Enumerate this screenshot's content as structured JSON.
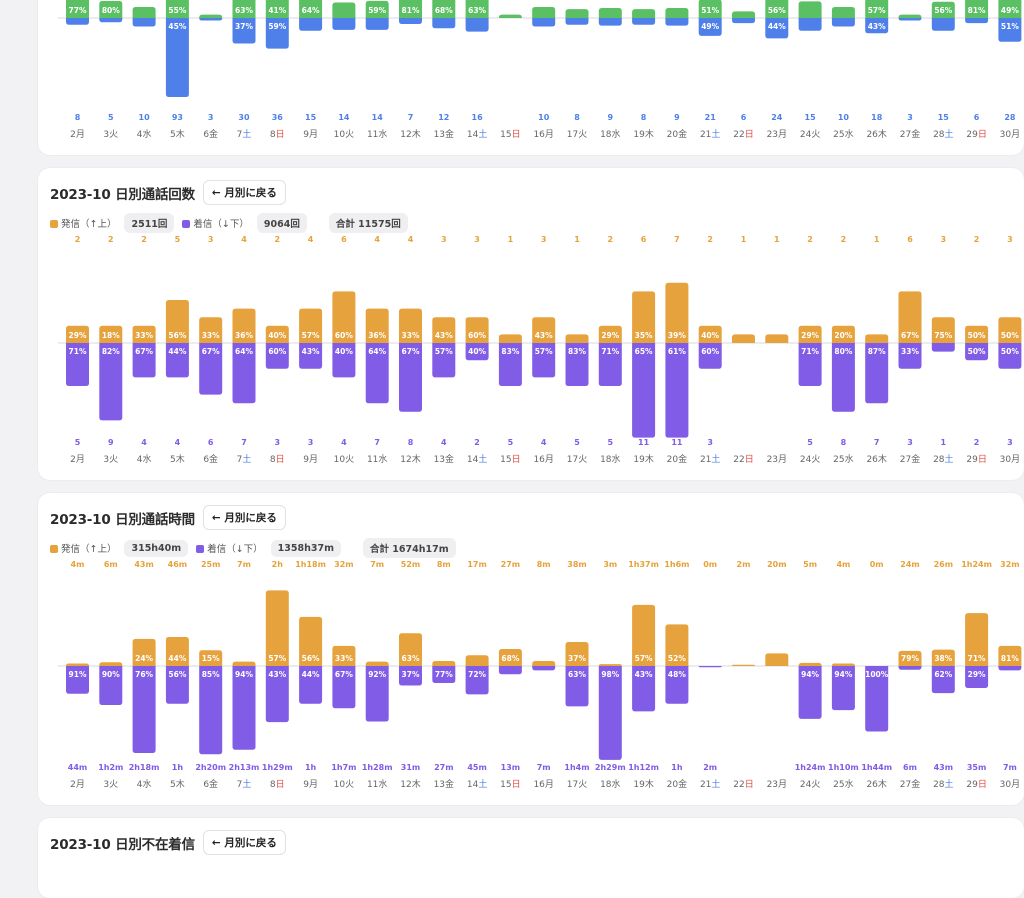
{
  "colors": {
    "green": "#5bbf63",
    "blue": "#4f80ea",
    "orange": "#e6a23c",
    "purple": "#815ce6",
    "sat": "#4a7ee8",
    "sun": "#e04a3f",
    "axis": "#d8d8dc",
    "daytext": "#666666"
  },
  "days": [
    "2",
    "3",
    "4",
    "5",
    "6",
    "7",
    "8",
    "9",
    "10",
    "11",
    "12",
    "13",
    "14",
    "15",
    "16",
    "17",
    "18",
    "19",
    "20",
    "21",
    "22",
    "23",
    "24",
    "25",
    "26",
    "27",
    "28",
    "29",
    "30"
  ],
  "weekdays": [
    "月",
    "火",
    "水",
    "木",
    "金",
    "土",
    "日",
    "月",
    "火",
    "水",
    "木",
    "金",
    "土",
    "日",
    "月",
    "火",
    "水",
    "木",
    "金",
    "土",
    "日",
    "月",
    "火",
    "水",
    "木",
    "金",
    "土",
    "日",
    "月"
  ],
  "sections": [
    {
      "id": "top",
      "title": "",
      "back_label": "",
      "legend": null
    },
    {
      "id": "count",
      "title": "2023-10 日別通話回数",
      "back_label": "← 月別に戻る",
      "legend": {
        "up_label": "発信（↑上）",
        "up_total": "2511回",
        "down_label": "着信（↓下）",
        "down_total": "9064回",
        "total": "合計 11575回"
      }
    },
    {
      "id": "duration",
      "title": "2023-10 日別通話時間",
      "back_label": "← 月別に戻る",
      "legend": {
        "up_label": "発信（↑上）",
        "up_total": "315h40m",
        "down_label": "着信（↓下）",
        "down_total": "1358h37m",
        "total": "合計 1674h17m"
      }
    },
    {
      "id": "missed",
      "title": "2023-10 日別不在着信",
      "back_label": "← 月別に戻る",
      "legend": null
    }
  ],
  "chart_data": [
    {
      "type": "bar",
      "title": "",
      "subtype": "diverging-stacked",
      "categories": [
        "2月",
        "3火",
        "4水",
        "5木",
        "6金",
        "7土",
        "8日",
        "9月",
        "10火",
        "11水",
        "12木",
        "13金",
        "14土",
        "15日",
        "16月",
        "17火",
        "18水",
        "19木",
        "20金",
        "21土",
        "22日",
        "23月",
        "24火",
        "25水",
        "26木",
        "27金",
        "28土",
        "29日",
        "30月"
      ],
      "series": [
        {
          "name": "up (green)",
          "direction": "up",
          "pct_labels": [
            "77%",
            "80%",
            "",
            "55%",
            "",
            "63%",
            "41%",
            "64%",
            "",
            "59%",
            "81%",
            "68%",
            "63%",
            "",
            "",
            "",
            "",
            "",
            "",
            "51%",
            "",
            "56%",
            "",
            "",
            "57%",
            "",
            "56%",
            "81%",
            "49%"
          ]
        },
        {
          "name": "down (blue)",
          "direction": "down",
          "values": [
            8,
            5,
            10,
            93,
            3,
            30,
            36,
            15,
            14,
            14,
            7,
            12,
            16,
            null,
            10,
            8,
            9,
            8,
            9,
            21,
            6,
            24,
            15,
            10,
            18,
            3,
            15,
            6,
            28
          ],
          "pct_labels": [
            "",
            "",
            "",
            "45%",
            "",
            "37%",
            "59%",
            "",
            "",
            "",
            "",
            "",
            "",
            "",
            "",
            "",
            "",
            "",
            "",
            "49%",
            "",
            "44%",
            "",
            "",
            "43%",
            "",
            "",
            "",
            "51%"
          ]
        }
      ],
      "notes": "Chart top is cropped; up-bar values not visible."
    },
    {
      "type": "bar",
      "subtype": "diverging-stacked",
      "title": "2023-10 日別通話回数",
      "categories": [
        "2月",
        "3火",
        "4水",
        "5木",
        "6金",
        "7土",
        "8日",
        "9月",
        "10火",
        "11水",
        "12木",
        "13金",
        "14土",
        "15日",
        "16月",
        "17火",
        "18水",
        "19木",
        "20金",
        "21土",
        "22日",
        "23月",
        "24火",
        "25水",
        "26木",
        "27金",
        "28土",
        "29日",
        "30月"
      ],
      "series": [
        {
          "name": "発信（↑上）",
          "direction": "up",
          "values": [
            2,
            2,
            2,
            5,
            3,
            4,
            2,
            4,
            6,
            4,
            4,
            3,
            3,
            1,
            3,
            1,
            2,
            6,
            7,
            2,
            1,
            1,
            2,
            2,
            1,
            6,
            3,
            2,
            3
          ],
          "pct_labels": [
            "29%",
            "18%",
            "33%",
            "56%",
            "33%",
            "36%",
            "40%",
            "57%",
            "60%",
            "36%",
            "33%",
            "43%",
            "60%",
            "",
            "43%",
            "",
            "29%",
            "35%",
            "39%",
            "40%",
            "",
            "",
            "29%",
            "20%",
            "",
            "67%",
            "75%",
            "50%",
            "50%"
          ]
        },
        {
          "name": "着信（↓下）",
          "direction": "down",
          "values": [
            5,
            9,
            4,
            4,
            6,
            7,
            3,
            3,
            4,
            7,
            8,
            4,
            2,
            5,
            4,
            5,
            5,
            11,
            11,
            3,
            null,
            null,
            5,
            8,
            7,
            3,
            1,
            2,
            3
          ],
          "pct_labels": [
            "71%",
            "82%",
            "67%",
            "44%",
            "67%",
            "64%",
            "60%",
            "43%",
            "40%",
            "64%",
            "67%",
            "57%",
            "40%",
            "83%",
            "57%",
            "83%",
            "71%",
            "65%",
            "61%",
            "60%",
            "",
            "",
            "71%",
            "80%",
            "87%",
            "33%",
            "",
            "50%",
            "50%"
          ]
        }
      ]
    },
    {
      "type": "bar",
      "subtype": "diverging-stacked",
      "title": "2023-10 日別通話時間",
      "unit": "minutes",
      "categories": [
        "2月",
        "3火",
        "4水",
        "5木",
        "6金",
        "7土",
        "8日",
        "9月",
        "10火",
        "11水",
        "12木",
        "13金",
        "14土",
        "15日",
        "16月",
        "17火",
        "18水",
        "19木",
        "20金",
        "21土",
        "22日",
        "23月",
        "24火",
        "25水",
        "26木",
        "27金",
        "28土",
        "29日",
        "30月"
      ],
      "series": [
        {
          "name": "発信（↑上）",
          "direction": "up",
          "labels": [
            "4m",
            "6m",
            "43m",
            "46m",
            "25m",
            "7m",
            "2h",
            "1h18m",
            "32m",
            "7m",
            "52m",
            "8m",
            "17m",
            "27m",
            "8m",
            "38m",
            "3m",
            "1h37m",
            "1h6m",
            "0m",
            "2m",
            "20m",
            "5m",
            "4m",
            "0m",
            "24m",
            "26m",
            "1h24m",
            "32m"
          ],
          "values": [
            4,
            6,
            43,
            46,
            25,
            7,
            120,
            78,
            32,
            7,
            52,
            8,
            17,
            27,
            8,
            38,
            3,
            97,
            66,
            0,
            2,
            20,
            5,
            4,
            0,
            24,
            26,
            84,
            32
          ],
          "pct_labels": [
            "",
            "",
            "24%",
            "44%",
            "15%",
            "",
            "57%",
            "56%",
            "33%",
            "",
            "63%",
            "",
            "",
            "68%",
            "",
            "37%",
            "",
            "57%",
            "52%",
            "",
            "",
            "",
            "",
            "",
            "",
            "79%",
            "38%",
            "71%",
            "81%"
          ]
        },
        {
          "name": "着信（↓下）",
          "direction": "down",
          "labels": [
            "44m",
            "1h2m",
            "2h18m",
            "1h",
            "2h20m",
            "2h13m",
            "1h29m",
            "1h",
            "1h7m",
            "1h28m",
            "31m",
            "27m",
            "45m",
            "13m",
            "7m",
            "1h4m",
            "2h29m",
            "1h12m",
            "1h",
            "2m",
            "",
            "",
            "1h24m",
            "1h10m",
            "1h44m",
            "6m",
            "43m",
            "35m",
            "7m"
          ],
          "values": [
            44,
            62,
            138,
            60,
            140,
            133,
            89,
            60,
            67,
            88,
            31,
            27,
            45,
            13,
            7,
            64,
            149,
            72,
            60,
            2,
            null,
            null,
            84,
            70,
            104,
            6,
            43,
            35,
            7
          ],
          "pct_labels": [
            "91%",
            "90%",
            "76%",
            "56%",
            "85%",
            "94%",
            "43%",
            "44%",
            "67%",
            "92%",
            "37%",
            "77%",
            "72%",
            "",
            "",
            "63%",
            "98%",
            "43%",
            "48%",
            "",
            "",
            "",
            "94%",
            "94%",
            "100%",
            "",
            "62%",
            "29%",
            ""
          ]
        }
      ]
    }
  ]
}
